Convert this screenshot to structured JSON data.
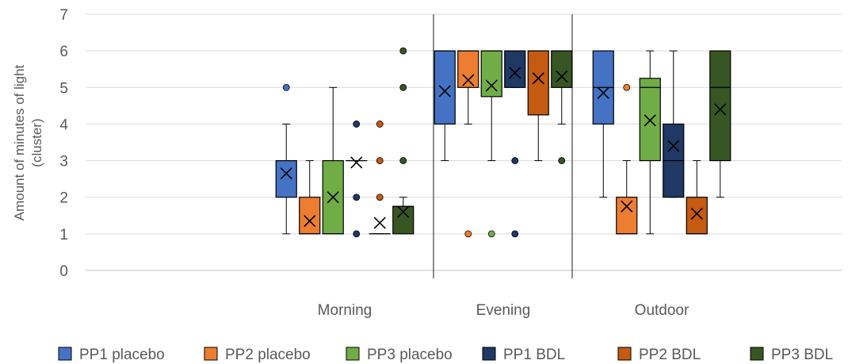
{
  "chart_data": {
    "type": "box",
    "title": "",
    "xlabel": "",
    "ylabel_lines": [
      "Amount of minutes of light",
      "(cluster)"
    ],
    "ylim": [
      0,
      7
    ],
    "yticks": [
      0,
      1,
      2,
      3,
      4,
      5,
      6,
      7
    ],
    "grid": true,
    "legend_position": "bottom",
    "categories": [
      "Morning",
      "Evening",
      "Outdoor"
    ],
    "series": [
      {
        "name": "PP1 placebo",
        "color": "#4472C4",
        "boxes": [
          {
            "min": 1,
            "q1": 2,
            "median": 3,
            "q3": 3,
            "max": 4,
            "mean": 2.65,
            "outliers": [
              5
            ]
          },
          {
            "min": 3,
            "q1": 4,
            "median": 6,
            "q3": 6,
            "max": 6,
            "mean": 4.9,
            "outliers": []
          },
          {
            "min": 2,
            "q1": 4,
            "median": 5,
            "q3": 6,
            "max": 6,
            "mean": 4.85,
            "outliers": []
          }
        ]
      },
      {
        "name": "PP2 placebo",
        "color": "#ED7D31",
        "boxes": [
          {
            "min": 1,
            "q1": 1,
            "median": 1,
            "q3": 2,
            "max": 3,
            "mean": 1.35,
            "outliers": []
          },
          {
            "min": 4,
            "q1": 5,
            "median": 6,
            "q3": 6,
            "max": 6,
            "mean": 5.2,
            "outliers": [
              1
            ]
          },
          {
            "min": 1,
            "q1": 1,
            "median": 1,
            "q3": 2,
            "max": 3,
            "mean": 1.75,
            "outliers": [
              5
            ]
          }
        ]
      },
      {
        "name": "PP3 placebo",
        "color": "#70AD47",
        "boxes": [
          {
            "min": 1,
            "q1": 1,
            "median": 1,
            "q3": 3,
            "max": 5,
            "mean": 2.0,
            "outliers": []
          },
          {
            "min": 3,
            "q1": 4.75,
            "median": 6,
            "q3": 6,
            "max": 6,
            "mean": 5.05,
            "outliers": [
              1
            ]
          },
          {
            "min": 1,
            "q1": 3,
            "median": 5,
            "q3": 5.25,
            "max": 6,
            "mean": 4.1,
            "outliers": []
          }
        ]
      },
      {
        "name": "PP1 BDL",
        "color": "#1F3864",
        "boxes": [
          {
            "min": 3,
            "q1": 3,
            "median": 3,
            "q3": 3,
            "max": 3,
            "mean": 2.95,
            "outliers": [
              1,
              2,
              4
            ]
          },
          {
            "min": 5,
            "q1": 5,
            "median": 6,
            "q3": 6,
            "max": 6,
            "mean": 5.4,
            "outliers": [
              1,
              3
            ]
          },
          {
            "min": 2,
            "q1": 2,
            "median": 3,
            "q3": 4,
            "max": 6,
            "mean": 3.4,
            "outliers": []
          }
        ]
      },
      {
        "name": "PP2 BDL",
        "color": "#C55A11",
        "boxes": [
          {
            "min": 1,
            "q1": 1,
            "median": 1,
            "q3": 1,
            "max": 1,
            "mean": 1.3,
            "outliers": [
              2,
              3,
              4
            ]
          },
          {
            "min": 3,
            "q1": 4.25,
            "median": 6,
            "q3": 6,
            "max": 6,
            "mean": 5.25,
            "outliers": []
          },
          {
            "min": 1,
            "q1": 1,
            "median": 1,
            "q3": 2,
            "max": 3,
            "mean": 1.55,
            "outliers": []
          }
        ]
      },
      {
        "name": "PP3 BDL",
        "color": "#375623",
        "boxes": [
          {
            "min": 1,
            "q1": 1,
            "median": 1.75,
            "q3": 1.75,
            "max": 2,
            "mean": 1.6,
            "outliers": [
              3,
              5,
              6
            ]
          },
          {
            "min": 4,
            "q1": 5,
            "median": 6,
            "q3": 6,
            "max": 6,
            "mean": 5.3,
            "outliers": [
              3
            ]
          },
          {
            "min": 2,
            "q1": 3,
            "median": 5,
            "q3": 6,
            "max": 6,
            "mean": 4.4,
            "outliers": []
          }
        ]
      }
    ]
  }
}
